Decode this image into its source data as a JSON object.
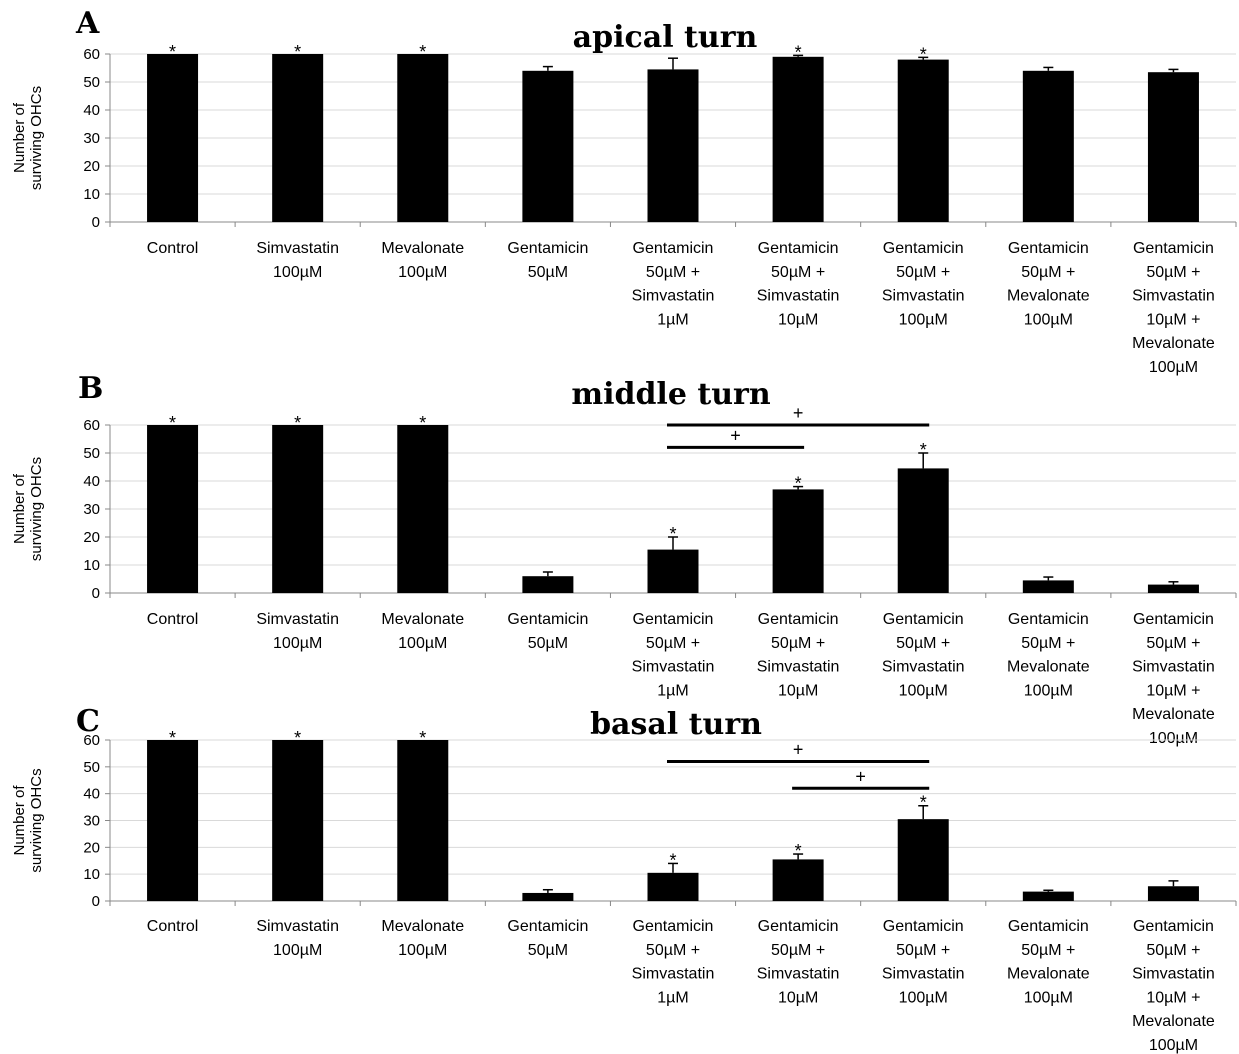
{
  "figure": {
    "colors": {
      "bar": "#000000",
      "grid": "#d9d9d9",
      "axis": "#888888",
      "sigline": "#000000"
    },
    "categories": [
      [
        "Control"
      ],
      [
        "Simvastatin",
        "100µM"
      ],
      [
        "Mevalonate",
        "100µM"
      ],
      [
        "Gentamicin",
        "50µM"
      ],
      [
        "Gentamicin",
        "50µM +",
        "Simvastatin",
        "1µM"
      ],
      [
        "Gentamicin",
        "50µM +",
        "Simvastatin",
        "10µM"
      ],
      [
        "Gentamicin",
        "50µM +",
        "Simvastatin",
        "100µM"
      ],
      [
        "Gentamicin",
        "50µM +",
        "Mevalonate",
        "100µM"
      ],
      [
        "Gentamicin",
        "50µM +",
        "Simvastatin",
        "10µM +",
        "Mevalonate",
        "100µM"
      ]
    ],
    "yticks": [
      "0",
      "10",
      "20",
      "30",
      "40",
      "50",
      "60"
    ],
    "ylabel_lines": [
      "Number of",
      "surviving OHCs"
    ],
    "star_symbol": "*",
    "plus_symbol": "+"
  },
  "chart_data": [
    {
      "type": "bar",
      "panel": "A",
      "title": "apical turn",
      "ylabel": "Number of surviving OHCs",
      "ylim": [
        0,
        60
      ],
      "grid": true,
      "values": [
        60,
        60,
        60,
        54,
        54.5,
        59,
        58,
        54,
        53.5
      ],
      "errors": [
        0,
        0,
        0,
        1.5,
        4,
        0.5,
        0.8,
        1.2,
        1
      ],
      "significant": [
        true,
        true,
        true,
        false,
        false,
        true,
        true,
        false,
        false
      ],
      "comparisons": []
    },
    {
      "type": "bar",
      "panel": "B",
      "title": "middle turn",
      "ylabel": "Number of surviving OHCs",
      "ylim": [
        0,
        60
      ],
      "grid": true,
      "values": [
        60,
        60,
        60,
        6,
        15.5,
        37,
        44.5,
        4.5,
        3
      ],
      "errors": [
        0,
        0,
        0,
        1.5,
        4.5,
        1,
        5.5,
        1.2,
        1
      ],
      "significant": [
        true,
        true,
        true,
        false,
        true,
        true,
        true,
        false,
        false
      ],
      "comparisons": [
        {
          "from": 4,
          "to": 6,
          "y": 60
        },
        {
          "from": 4,
          "to": 5,
          "y": 52
        }
      ]
    },
    {
      "type": "bar",
      "panel": "C",
      "title": "basal turn",
      "ylabel": "Number of surviving OHCs",
      "ylim": [
        0,
        60
      ],
      "grid": true,
      "values": [
        60,
        60,
        60,
        3,
        10.5,
        15.5,
        30.5,
        3.5,
        5.5
      ],
      "errors": [
        0,
        0,
        0,
        1.2,
        3.5,
        2,
        5,
        0.5,
        2
      ],
      "significant": [
        true,
        true,
        true,
        false,
        true,
        true,
        true,
        false,
        false
      ],
      "comparisons": [
        {
          "from": 4,
          "to": 6,
          "y": 52
        },
        {
          "from": 5,
          "to": 6,
          "y": 42
        }
      ]
    }
  ]
}
